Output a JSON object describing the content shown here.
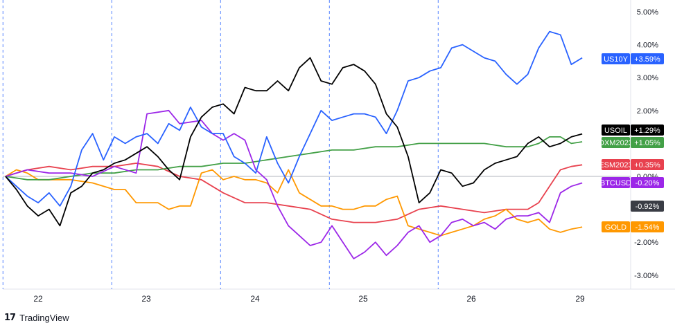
{
  "brand": {
    "logo_icon": "tradingview-logo-icon",
    "name": "TradingView"
  },
  "chart_data": {
    "type": "line",
    "grid": "vertical session separators (dashed blue)",
    "legend": "right price-axis labels",
    "x_ticks": [
      "22",
      "23",
      "24",
      "25",
      "26",
      "29"
    ],
    "y_ticks": [
      "5.00%",
      "4.00%",
      "3.00%",
      "2.00%",
      "0.00%",
      "-2.00%",
      "-3.00%"
    ],
    "ylim": [
      -3.3,
      5.2
    ],
    "xlim": [
      21.7,
      29.8
    ],
    "session_breaks": [
      21.67,
      22.67,
      23.67,
      24.67,
      25.67
    ],
    "baseline_label": "-0.92%",
    "baseline_value": -0.92,
    "series": [
      {
        "name": "US10Y",
        "label": "+3.59%",
        "value": 3.59,
        "color": "#2962ff",
        "points": [
          [
            21.7,
            0.0
          ],
          [
            21.8,
            -0.3
          ],
          [
            21.9,
            -0.6
          ],
          [
            22.0,
            -0.8
          ],
          [
            22.1,
            -0.5
          ],
          [
            22.2,
            -0.9
          ],
          [
            22.3,
            -0.3
          ],
          [
            22.4,
            0.8
          ],
          [
            22.5,
            1.3
          ],
          [
            22.6,
            0.5
          ],
          [
            22.7,
            1.2
          ],
          [
            22.8,
            1.0
          ],
          [
            22.9,
            1.2
          ],
          [
            23.0,
            1.3
          ],
          [
            23.1,
            1.0
          ],
          [
            23.2,
            1.6
          ],
          [
            23.3,
            1.4
          ],
          [
            23.4,
            2.1
          ],
          [
            23.5,
            1.5
          ],
          [
            23.6,
            1.3
          ],
          [
            23.7,
            1.3
          ],
          [
            23.8,
            0.6
          ],
          [
            23.9,
            0.4
          ],
          [
            24.0,
            0.1
          ],
          [
            24.1,
            1.2
          ],
          [
            24.2,
            0.4
          ],
          [
            24.3,
            -0.2
          ],
          [
            24.4,
            0.6
          ],
          [
            24.5,
            1.3
          ],
          [
            24.6,
            2.0
          ],
          [
            24.7,
            1.7
          ],
          [
            24.8,
            1.8
          ],
          [
            24.9,
            1.9
          ],
          [
            25.0,
            1.9
          ],
          [
            25.1,
            1.8
          ],
          [
            25.2,
            1.3
          ],
          [
            25.3,
            2.0
          ],
          [
            25.4,
            2.9
          ],
          [
            25.5,
            3.0
          ],
          [
            25.6,
            3.2
          ],
          [
            25.7,
            3.3
          ],
          [
            25.8,
            3.9
          ],
          [
            25.9,
            4.0
          ],
          [
            26.0,
            3.8
          ],
          [
            26.1,
            3.6
          ],
          [
            26.2,
            3.5
          ],
          [
            26.3,
            3.1
          ],
          [
            26.4,
            2.8
          ],
          [
            26.5,
            3.1
          ],
          [
            26.6,
            3.9
          ],
          [
            26.7,
            4.4
          ],
          [
            26.8,
            4.3
          ],
          [
            26.9,
            3.4
          ],
          [
            27.0,
            3.6
          ]
        ]
      },
      {
        "name": "USOIL",
        "label": "+1.29%",
        "value": 1.29,
        "color": "#000000",
        "points": [
          [
            21.7,
            0.0
          ],
          [
            21.8,
            -0.4
          ],
          [
            21.9,
            -0.9
          ],
          [
            22.0,
            -1.2
          ],
          [
            22.1,
            -1.0
          ],
          [
            22.2,
            -1.5
          ],
          [
            22.3,
            -0.5
          ],
          [
            22.4,
            -0.3
          ],
          [
            22.5,
            0.1
          ],
          [
            22.6,
            0.2
          ],
          [
            22.7,
            0.4
          ],
          [
            22.8,
            0.5
          ],
          [
            22.9,
            0.7
          ],
          [
            23.0,
            0.9
          ],
          [
            23.1,
            0.6
          ],
          [
            23.2,
            0.2
          ],
          [
            23.3,
            -0.1
          ],
          [
            23.4,
            1.2
          ],
          [
            23.5,
            1.8
          ],
          [
            23.6,
            2.1
          ],
          [
            23.7,
            2.2
          ],
          [
            23.8,
            1.9
          ],
          [
            23.9,
            2.7
          ],
          [
            24.0,
            2.6
          ],
          [
            24.1,
            2.6
          ],
          [
            24.2,
            2.9
          ],
          [
            24.3,
            2.6
          ],
          [
            24.4,
            3.3
          ],
          [
            24.5,
            3.6
          ],
          [
            24.6,
            2.9
          ],
          [
            24.7,
            2.8
          ],
          [
            24.8,
            3.3
          ],
          [
            24.9,
            3.4
          ],
          [
            25.0,
            3.2
          ],
          [
            25.1,
            2.8
          ],
          [
            25.2,
            1.9
          ],
          [
            25.3,
            1.5
          ],
          [
            25.4,
            0.6
          ],
          [
            25.5,
            -0.8
          ],
          [
            25.6,
            -0.5
          ],
          [
            25.7,
            0.2
          ],
          [
            25.8,
            0.1
          ],
          [
            25.9,
            -0.3
          ],
          [
            26.0,
            -0.2
          ],
          [
            26.1,
            0.2
          ],
          [
            26.2,
            0.4
          ],
          [
            26.3,
            0.5
          ],
          [
            26.4,
            0.6
          ],
          [
            26.5,
            1.0
          ],
          [
            26.6,
            1.2
          ],
          [
            26.7,
            0.9
          ],
          [
            26.8,
            1.0
          ],
          [
            26.9,
            1.2
          ],
          [
            27.0,
            1.29
          ]
        ]
      },
      {
        "name": "DXM2023",
        "label": "+1.05%",
        "value": 1.05,
        "color": "#43a047",
        "points": [
          [
            21.7,
            0.0
          ],
          [
            21.9,
            -0.1
          ],
          [
            22.1,
            -0.1
          ],
          [
            22.3,
            0.0
          ],
          [
            22.5,
            0.1
          ],
          [
            22.7,
            0.1
          ],
          [
            22.9,
            0.2
          ],
          [
            23.1,
            0.2
          ],
          [
            23.3,
            0.3
          ],
          [
            23.5,
            0.3
          ],
          [
            23.7,
            0.4
          ],
          [
            23.9,
            0.4
          ],
          [
            24.1,
            0.5
          ],
          [
            24.3,
            0.6
          ],
          [
            24.5,
            0.7
          ],
          [
            24.7,
            0.8
          ],
          [
            24.9,
            0.8
          ],
          [
            25.1,
            0.9
          ],
          [
            25.3,
            0.9
          ],
          [
            25.5,
            1.0
          ],
          [
            25.7,
            1.0
          ],
          [
            25.9,
            1.0
          ],
          [
            26.1,
            1.0
          ],
          [
            26.3,
            0.9
          ],
          [
            26.5,
            0.9
          ],
          [
            26.6,
            1.0
          ],
          [
            26.7,
            1.2
          ],
          [
            26.8,
            1.2
          ],
          [
            26.9,
            1.0
          ],
          [
            27.0,
            1.05
          ]
        ]
      },
      {
        "name": "ESM2023",
        "label": "+0.35%",
        "value": 0.35,
        "color": "#e8414e",
        "points": [
          [
            21.7,
            0.0
          ],
          [
            21.9,
            0.2
          ],
          [
            22.1,
            0.3
          ],
          [
            22.3,
            0.2
          ],
          [
            22.5,
            0.3
          ],
          [
            22.7,
            0.3
          ],
          [
            22.9,
            0.4
          ],
          [
            23.1,
            0.3
          ],
          [
            23.3,
            0.0
          ],
          [
            23.5,
            -0.1
          ],
          [
            23.7,
            -0.5
          ],
          [
            23.9,
            -0.8
          ],
          [
            24.1,
            -0.8
          ],
          [
            24.3,
            -0.9
          ],
          [
            24.5,
            -1.0
          ],
          [
            24.7,
            -1.3
          ],
          [
            24.9,
            -1.4
          ],
          [
            25.1,
            -1.4
          ],
          [
            25.3,
            -1.3
          ],
          [
            25.5,
            -1.0
          ],
          [
            25.7,
            -0.9
          ],
          [
            25.9,
            -1.0
          ],
          [
            26.1,
            -1.1
          ],
          [
            26.3,
            -1.0
          ],
          [
            26.5,
            -1.0
          ],
          [
            26.6,
            -0.8
          ],
          [
            26.7,
            -0.3
          ],
          [
            26.8,
            0.2
          ],
          [
            26.9,
            0.3
          ],
          [
            27.0,
            0.35
          ]
        ]
      },
      {
        "name": "BTCUSD",
        "label": "-0.20%",
        "value": -0.2,
        "color": "#9c27e8",
        "points": [
          [
            21.7,
            0.0
          ],
          [
            21.9,
            0.2
          ],
          [
            22.1,
            0.1
          ],
          [
            22.3,
            0.1
          ],
          [
            22.5,
            0.0
          ],
          [
            22.7,
            0.3
          ],
          [
            22.9,
            0.1
          ],
          [
            23.0,
            1.9
          ],
          [
            23.2,
            2.0
          ],
          [
            23.3,
            1.6
          ],
          [
            23.5,
            1.7
          ],
          [
            23.6,
            1.3
          ],
          [
            23.7,
            1.1
          ],
          [
            23.8,
            1.3
          ],
          [
            23.9,
            1.1
          ],
          [
            24.0,
            0.2
          ],
          [
            24.1,
            -0.1
          ],
          [
            24.2,
            -0.9
          ],
          [
            24.3,
            -1.5
          ],
          [
            24.4,
            -1.8
          ],
          [
            24.5,
            -2.1
          ],
          [
            24.6,
            -2.0
          ],
          [
            24.7,
            -1.5
          ],
          [
            24.8,
            -2.0
          ],
          [
            24.9,
            -2.5
          ],
          [
            25.0,
            -2.3
          ],
          [
            25.1,
            -2.0
          ],
          [
            25.2,
            -2.4
          ],
          [
            25.3,
            -2.1
          ],
          [
            25.4,
            -1.7
          ],
          [
            25.5,
            -1.5
          ],
          [
            25.6,
            -2.0
          ],
          [
            25.7,
            -1.8
          ],
          [
            25.8,
            -1.4
          ],
          [
            25.9,
            -1.3
          ],
          [
            26.0,
            -1.5
          ],
          [
            26.1,
            -1.4
          ],
          [
            26.2,
            -1.6
          ],
          [
            26.3,
            -1.3
          ],
          [
            26.4,
            -1.2
          ],
          [
            26.5,
            -1.2
          ],
          [
            26.6,
            -1.1
          ],
          [
            26.7,
            -1.4
          ],
          [
            26.8,
            -0.5
          ],
          [
            26.9,
            -0.3
          ],
          [
            27.0,
            -0.2
          ]
        ]
      },
      {
        "name": "GOLD",
        "label": "-1.54%",
        "value": -1.54,
        "color": "#ff9800",
        "points": [
          [
            21.7,
            0.0
          ],
          [
            21.8,
            0.2
          ],
          [
            21.9,
            0.1
          ],
          [
            22.0,
            -0.1
          ],
          [
            22.1,
            -0.1
          ],
          [
            22.3,
            -0.1
          ],
          [
            22.5,
            -0.2
          ],
          [
            22.7,
            -0.4
          ],
          [
            22.8,
            -0.4
          ],
          [
            22.9,
            -0.8
          ],
          [
            23.1,
            -0.8
          ],
          [
            23.2,
            -1.0
          ],
          [
            23.3,
            -0.9
          ],
          [
            23.4,
            -0.9
          ],
          [
            23.5,
            0.1
          ],
          [
            23.6,
            0.2
          ],
          [
            23.7,
            -0.1
          ],
          [
            23.8,
            0.0
          ],
          [
            23.9,
            -0.1
          ],
          [
            24.0,
            -0.1
          ],
          [
            24.1,
            -0.2
          ],
          [
            24.2,
            -0.5
          ],
          [
            24.3,
            0.2
          ],
          [
            24.4,
            -0.5
          ],
          [
            24.5,
            -0.7
          ],
          [
            24.6,
            -0.9
          ],
          [
            24.7,
            -0.9
          ],
          [
            24.8,
            -1.0
          ],
          [
            24.9,
            -1.0
          ],
          [
            25.0,
            -0.9
          ],
          [
            25.1,
            -0.9
          ],
          [
            25.2,
            -0.7
          ],
          [
            25.3,
            -0.6
          ],
          [
            25.4,
            -1.5
          ],
          [
            25.5,
            -1.6
          ],
          [
            25.6,
            -1.7
          ],
          [
            25.7,
            -1.8
          ],
          [
            25.8,
            -1.7
          ],
          [
            25.9,
            -1.6
          ],
          [
            26.0,
            -1.5
          ],
          [
            26.1,
            -1.3
          ],
          [
            26.2,
            -1.2
          ],
          [
            26.3,
            -1.0
          ],
          [
            26.4,
            -1.3
          ],
          [
            26.5,
            -1.4
          ],
          [
            26.6,
            -1.3
          ],
          [
            26.7,
            -1.6
          ],
          [
            26.8,
            -1.7
          ],
          [
            26.9,
            -1.6
          ],
          [
            27.0,
            -1.54
          ]
        ]
      }
    ]
  }
}
